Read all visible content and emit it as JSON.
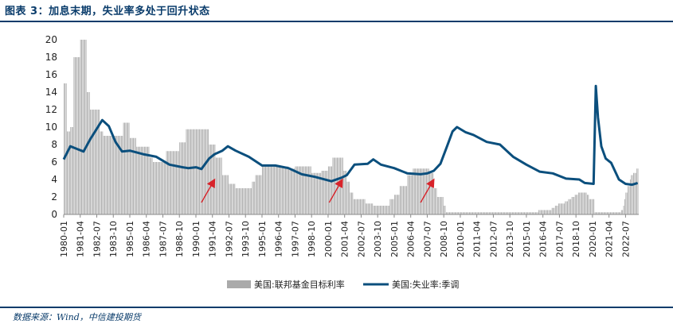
{
  "figure": {
    "title": "图表 3：加息末期，失业率多处于回升状态",
    "source": "数据来源：Wind，中信建投期货"
  },
  "colors": {
    "bar": "#aaaaaa",
    "line": "#0b4f7d",
    "arrow": "#d8232a",
    "axis": "#8a8a8a",
    "frame": "#0a3c6b"
  },
  "chart_data": {
    "type": "bar+line",
    "title": "",
    "xlabel": "",
    "ylabel": "",
    "ylim": [
      0,
      20
    ],
    "yticks": [
      0,
      2,
      4,
      6,
      8,
      10,
      12,
      14,
      16,
      18,
      20
    ],
    "x_start": "1980-01",
    "x_end": "2023-06",
    "xticks": [
      "1980-01",
      "1981-04",
      "1982-07",
      "1983-10",
      "1985-01",
      "1986-04",
      "1987-07",
      "1988-10",
      "1990-01",
      "1991-04",
      "1992-07",
      "1993-10",
      "1995-01",
      "1996-04",
      "1997-07",
      "1998-10",
      "2000-01",
      "2001-04",
      "2002-07",
      "2003-10",
      "2005-01",
      "2006-04",
      "2007-07",
      "2008-10",
      "2010-01",
      "2011-04",
      "2012-07",
      "2013-10",
      "2015-01",
      "2016-04",
      "2017-07",
      "2018-10",
      "2020-01",
      "2021-04",
      "2022-07"
    ],
    "legend": {
      "position": "bottom",
      "bar_label": "美国:联邦基金目标利率",
      "line_label": "美国:失业率:季调"
    },
    "series": [
      {
        "name": "美国:联邦基金目标利率",
        "kind": "bar",
        "points": [
          [
            "1980-01",
            15
          ],
          [
            "1980-04",
            9.5
          ],
          [
            "1980-07",
            10
          ],
          [
            "1980-10",
            18
          ],
          [
            "1981-01",
            18
          ],
          [
            "1981-04",
            20
          ],
          [
            "1981-07",
            20
          ],
          [
            "1981-10",
            14
          ],
          [
            "1982-01",
            12
          ],
          [
            "1982-04",
            12
          ],
          [
            "1982-07",
            12
          ],
          [
            "1982-10",
            9.5
          ],
          [
            "1983-01",
            9
          ],
          [
            "1983-07",
            9
          ],
          [
            "1984-01",
            9
          ],
          [
            "1984-07",
            10.5
          ],
          [
            "1984-10",
            10.5
          ],
          [
            "1985-01",
            8.75
          ],
          [
            "1985-07",
            7.75
          ],
          [
            "1986-01",
            7.75
          ],
          [
            "1986-07",
            6.5
          ],
          [
            "1986-10",
            6
          ],
          [
            "1987-01",
            6
          ],
          [
            "1987-07",
            6
          ],
          [
            "1987-10",
            7.25
          ],
          [
            "1988-06",
            7.25
          ],
          [
            "1988-10",
            8.25
          ],
          [
            "1989-04",
            9.75
          ],
          [
            "1990-01",
            9.75
          ],
          [
            "1990-10",
            9.75
          ],
          [
            "1991-01",
            8
          ],
          [
            "1991-07",
            6.5
          ],
          [
            "1992-01",
            4.5
          ],
          [
            "1992-07",
            3.5
          ],
          [
            "1993-01",
            3
          ],
          [
            "1994-01",
            3
          ],
          [
            "1994-04",
            3.75
          ],
          [
            "1994-07",
            4.5
          ],
          [
            "1995-01",
            5.5
          ],
          [
            "1996-01",
            5.5
          ],
          [
            "1997-01",
            5.25
          ],
          [
            "1997-07",
            5.5
          ],
          [
            "1998-07",
            5.5
          ],
          [
            "1998-10",
            4.75
          ],
          [
            "1999-01",
            4.75
          ],
          [
            "1999-07",
            5
          ],
          [
            "2000-01",
            5.5
          ],
          [
            "2000-05",
            6.5
          ],
          [
            "2000-12",
            6.5
          ],
          [
            "2001-03",
            5
          ],
          [
            "2001-06",
            3.75
          ],
          [
            "2001-09",
            2.5
          ],
          [
            "2001-12",
            1.75
          ],
          [
            "2002-11",
            1.25
          ],
          [
            "2003-06",
            1
          ],
          [
            "2004-06",
            1
          ],
          [
            "2004-09",
            1.75
          ],
          [
            "2005-01",
            2.25
          ],
          [
            "2005-06",
            3.25
          ],
          [
            "2006-01",
            4.5
          ],
          [
            "2006-06",
            5.25
          ],
          [
            "2007-08",
            5.25
          ],
          [
            "2007-09",
            4.75
          ],
          [
            "2008-01",
            3
          ],
          [
            "2008-04",
            2
          ],
          [
            "2008-10",
            1
          ],
          [
            "2008-12",
            0.25
          ],
          [
            "2015-11",
            0.25
          ],
          [
            "2015-12",
            0.5
          ],
          [
            "2016-11",
            0.5
          ],
          [
            "2016-12",
            0.75
          ],
          [
            "2017-03",
            1
          ],
          [
            "2017-06",
            1.25
          ],
          [
            "2017-12",
            1.5
          ],
          [
            "2018-03",
            1.75
          ],
          [
            "2018-06",
            2
          ],
          [
            "2018-09",
            2.25
          ],
          [
            "2018-12",
            2.5
          ],
          [
            "2019-06",
            2.5
          ],
          [
            "2019-08",
            2.25
          ],
          [
            "2019-10",
            1.75
          ],
          [
            "2020-02",
            1.75
          ],
          [
            "2020-03",
            0.25
          ],
          [
            "2022-02",
            0.25
          ],
          [
            "2022-03",
            0.5
          ],
          [
            "2022-05",
            1
          ],
          [
            "2022-06",
            1.75
          ],
          [
            "2022-07",
            2.5
          ],
          [
            "2022-09",
            3.25
          ],
          [
            "2022-11",
            4
          ],
          [
            "2022-12",
            4.5
          ],
          [
            "2023-02",
            4.75
          ],
          [
            "2023-05",
            5.25
          ]
        ]
      },
      {
        "name": "美国:失业率:季调",
        "kind": "line",
        "points": [
          [
            "1980-01",
            6.3
          ],
          [
            "1980-07",
            7.8
          ],
          [
            "1981-01",
            7.5
          ],
          [
            "1981-07",
            7.2
          ],
          [
            "1982-01",
            8.6
          ],
          [
            "1982-07",
            9.8
          ],
          [
            "1982-12",
            10.8
          ],
          [
            "1983-06",
            10.1
          ],
          [
            "1983-12",
            8.3
          ],
          [
            "1984-06",
            7.2
          ],
          [
            "1985-01",
            7.3
          ],
          [
            "1986-01",
            6.9
          ],
          [
            "1987-01",
            6.6
          ],
          [
            "1988-01",
            5.7
          ],
          [
            "1989-01",
            5.4
          ],
          [
            "1989-06",
            5.3
          ],
          [
            "1990-01",
            5.4
          ],
          [
            "1990-06",
            5.2
          ],
          [
            "1991-01",
            6.4
          ],
          [
            "1991-06",
            6.9
          ],
          [
            "1992-01",
            7.3
          ],
          [
            "1992-06",
            7.8
          ],
          [
            "1993-01",
            7.3
          ],
          [
            "1994-01",
            6.6
          ],
          [
            "1995-01",
            5.6
          ],
          [
            "1996-01",
            5.6
          ],
          [
            "1997-01",
            5.3
          ],
          [
            "1998-01",
            4.6
          ],
          [
            "1999-01",
            4.3
          ],
          [
            "2000-04",
            3.8
          ],
          [
            "2001-01",
            4.2
          ],
          [
            "2001-06",
            4.5
          ],
          [
            "2002-01",
            5.7
          ],
          [
            "2003-01",
            5.8
          ],
          [
            "2003-06",
            6.3
          ],
          [
            "2004-01",
            5.7
          ],
          [
            "2005-01",
            5.3
          ],
          [
            "2006-01",
            4.7
          ],
          [
            "2007-01",
            4.6
          ],
          [
            "2007-07",
            4.7
          ],
          [
            "2008-01",
            5
          ],
          [
            "2008-07",
            5.8
          ],
          [
            "2009-01",
            7.8
          ],
          [
            "2009-06",
            9.5
          ],
          [
            "2009-10",
            10
          ],
          [
            "2010-06",
            9.4
          ],
          [
            "2011-01",
            9.1
          ],
          [
            "2012-01",
            8.3
          ],
          [
            "2013-01",
            8
          ],
          [
            "2014-01",
            6.6
          ],
          [
            "2015-01",
            5.7
          ],
          [
            "2016-01",
            4.9
          ],
          [
            "2017-01",
            4.7
          ],
          [
            "2018-01",
            4.1
          ],
          [
            "2019-01",
            4
          ],
          [
            "2019-06",
            3.6
          ],
          [
            "2020-02",
            3.5
          ],
          [
            "2020-04",
            14.7
          ],
          [
            "2020-06",
            11.1
          ],
          [
            "2020-09",
            7.8
          ],
          [
            "2021-01",
            6.4
          ],
          [
            "2021-06",
            5.9
          ],
          [
            "2022-01",
            4
          ],
          [
            "2022-07",
            3.5
          ],
          [
            "2023-01",
            3.4
          ],
          [
            "2023-06",
            3.6
          ]
        ]
      }
    ],
    "annotations": [
      {
        "type": "arrow",
        "color": "red",
        "target": "1991-07"
      },
      {
        "type": "arrow",
        "color": "red",
        "target": "2001-03"
      },
      {
        "type": "arrow",
        "color": "red",
        "target": "2008-02"
      }
    ]
  }
}
